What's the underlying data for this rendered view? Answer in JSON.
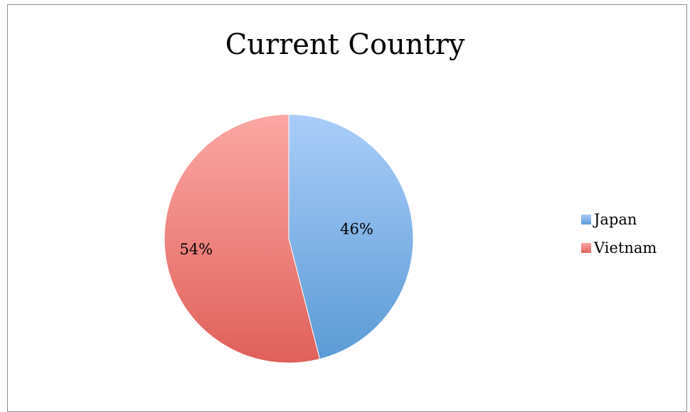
{
  "chart_data": {
    "type": "pie",
    "title": "Current Country",
    "categories": [
      "Japan",
      "Vietnam"
    ],
    "values": [
      46,
      54
    ],
    "labels": [
      "46%",
      "54%"
    ],
    "colors": [
      "#5b9bd5",
      "#e0605a"
    ],
    "colors_light": [
      "#aacdf9",
      "#fca8a4"
    ],
    "legend_position": "right"
  }
}
